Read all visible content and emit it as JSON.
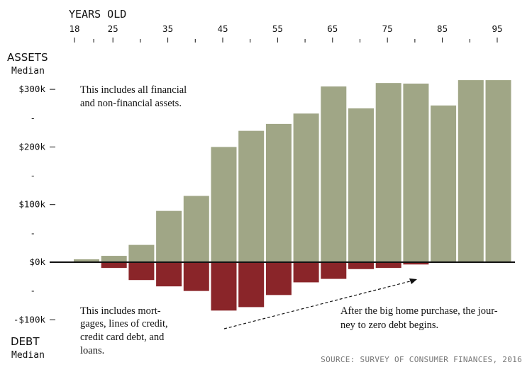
{
  "chart_data": {
    "type": "bar",
    "x_axis_title": "YEARS OLD",
    "x_ticks": [
      18,
      25,
      35,
      45,
      55,
      65,
      75,
      85,
      95
    ],
    "age_groups": [
      18,
      22,
      27,
      32,
      37,
      42,
      47,
      52,
      57,
      62,
      67,
      72,
      77,
      82,
      87,
      92
    ],
    "series": [
      {
        "name": "ASSETS",
        "sublabel": "Median",
        "values": [
          5,
          11,
          30,
          89,
          115,
          200,
          228,
          240,
          258,
          305,
          267,
          311,
          310,
          272,
          316,
          316
        ]
      },
      {
        "name": "DEBT",
        "sublabel": "Median",
        "values": [
          0,
          -10,
          -31,
          -42,
          -50,
          -84,
          -78,
          -57,
          -35,
          -29,
          -12,
          -10,
          -4,
          0,
          0,
          0
        ]
      }
    ],
    "y_unit": "$k",
    "ylim": [
      -110,
      320
    ],
    "y_ticks": [
      {
        "value": 300,
        "label": "$300k"
      },
      {
        "value": 250,
        "label": "-"
      },
      {
        "value": 200,
        "label": "$200k"
      },
      {
        "value": 150,
        "label": "-"
      },
      {
        "value": 100,
        "label": "$100k"
      },
      {
        "value": 50,
        "label": "-"
      },
      {
        "value": 0,
        "label": "$0k"
      },
      {
        "value": -50,
        "label": "-"
      },
      {
        "value": -100,
        "label": "-$100k"
      }
    ],
    "annotations": {
      "assets_note": [
        "This includes all financial",
        "and non-financial assets."
      ],
      "debt_note": [
        "This includes mort-",
        "gages, lines of credit,",
        "credit card debt, and",
        "loans."
      ],
      "arrow_note": [
        "After the big home purchase, the jour-",
        "ney to zero debt begins."
      ]
    },
    "source": "SOURCE: SURVEY OF CONSUMER FINANCES, 2016",
    "colors": {
      "assets": "#a0a686",
      "debt": "#8a2529",
      "axis": "#111111",
      "source_text": "#777777"
    }
  }
}
